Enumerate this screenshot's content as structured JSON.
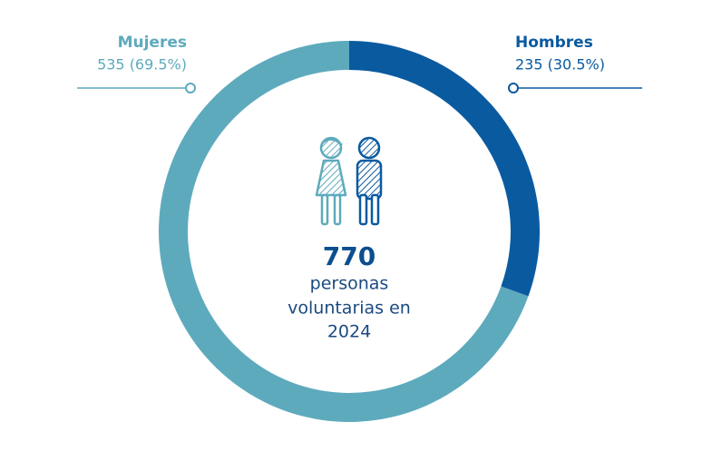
{
  "chart_data": {
    "type": "donut",
    "categories": [
      "Mujeres",
      "Hombres"
    ],
    "values": [
      535,
      235
    ],
    "value_labels": [
      "535 (69.5%)",
      "235 (30.5%)"
    ],
    "colors": [
      "#5eaabd",
      "#0a5aa0"
    ],
    "total": 770,
    "center_text": [
      "personas",
      "voluntarias en",
      "2024"
    ]
  }
}
